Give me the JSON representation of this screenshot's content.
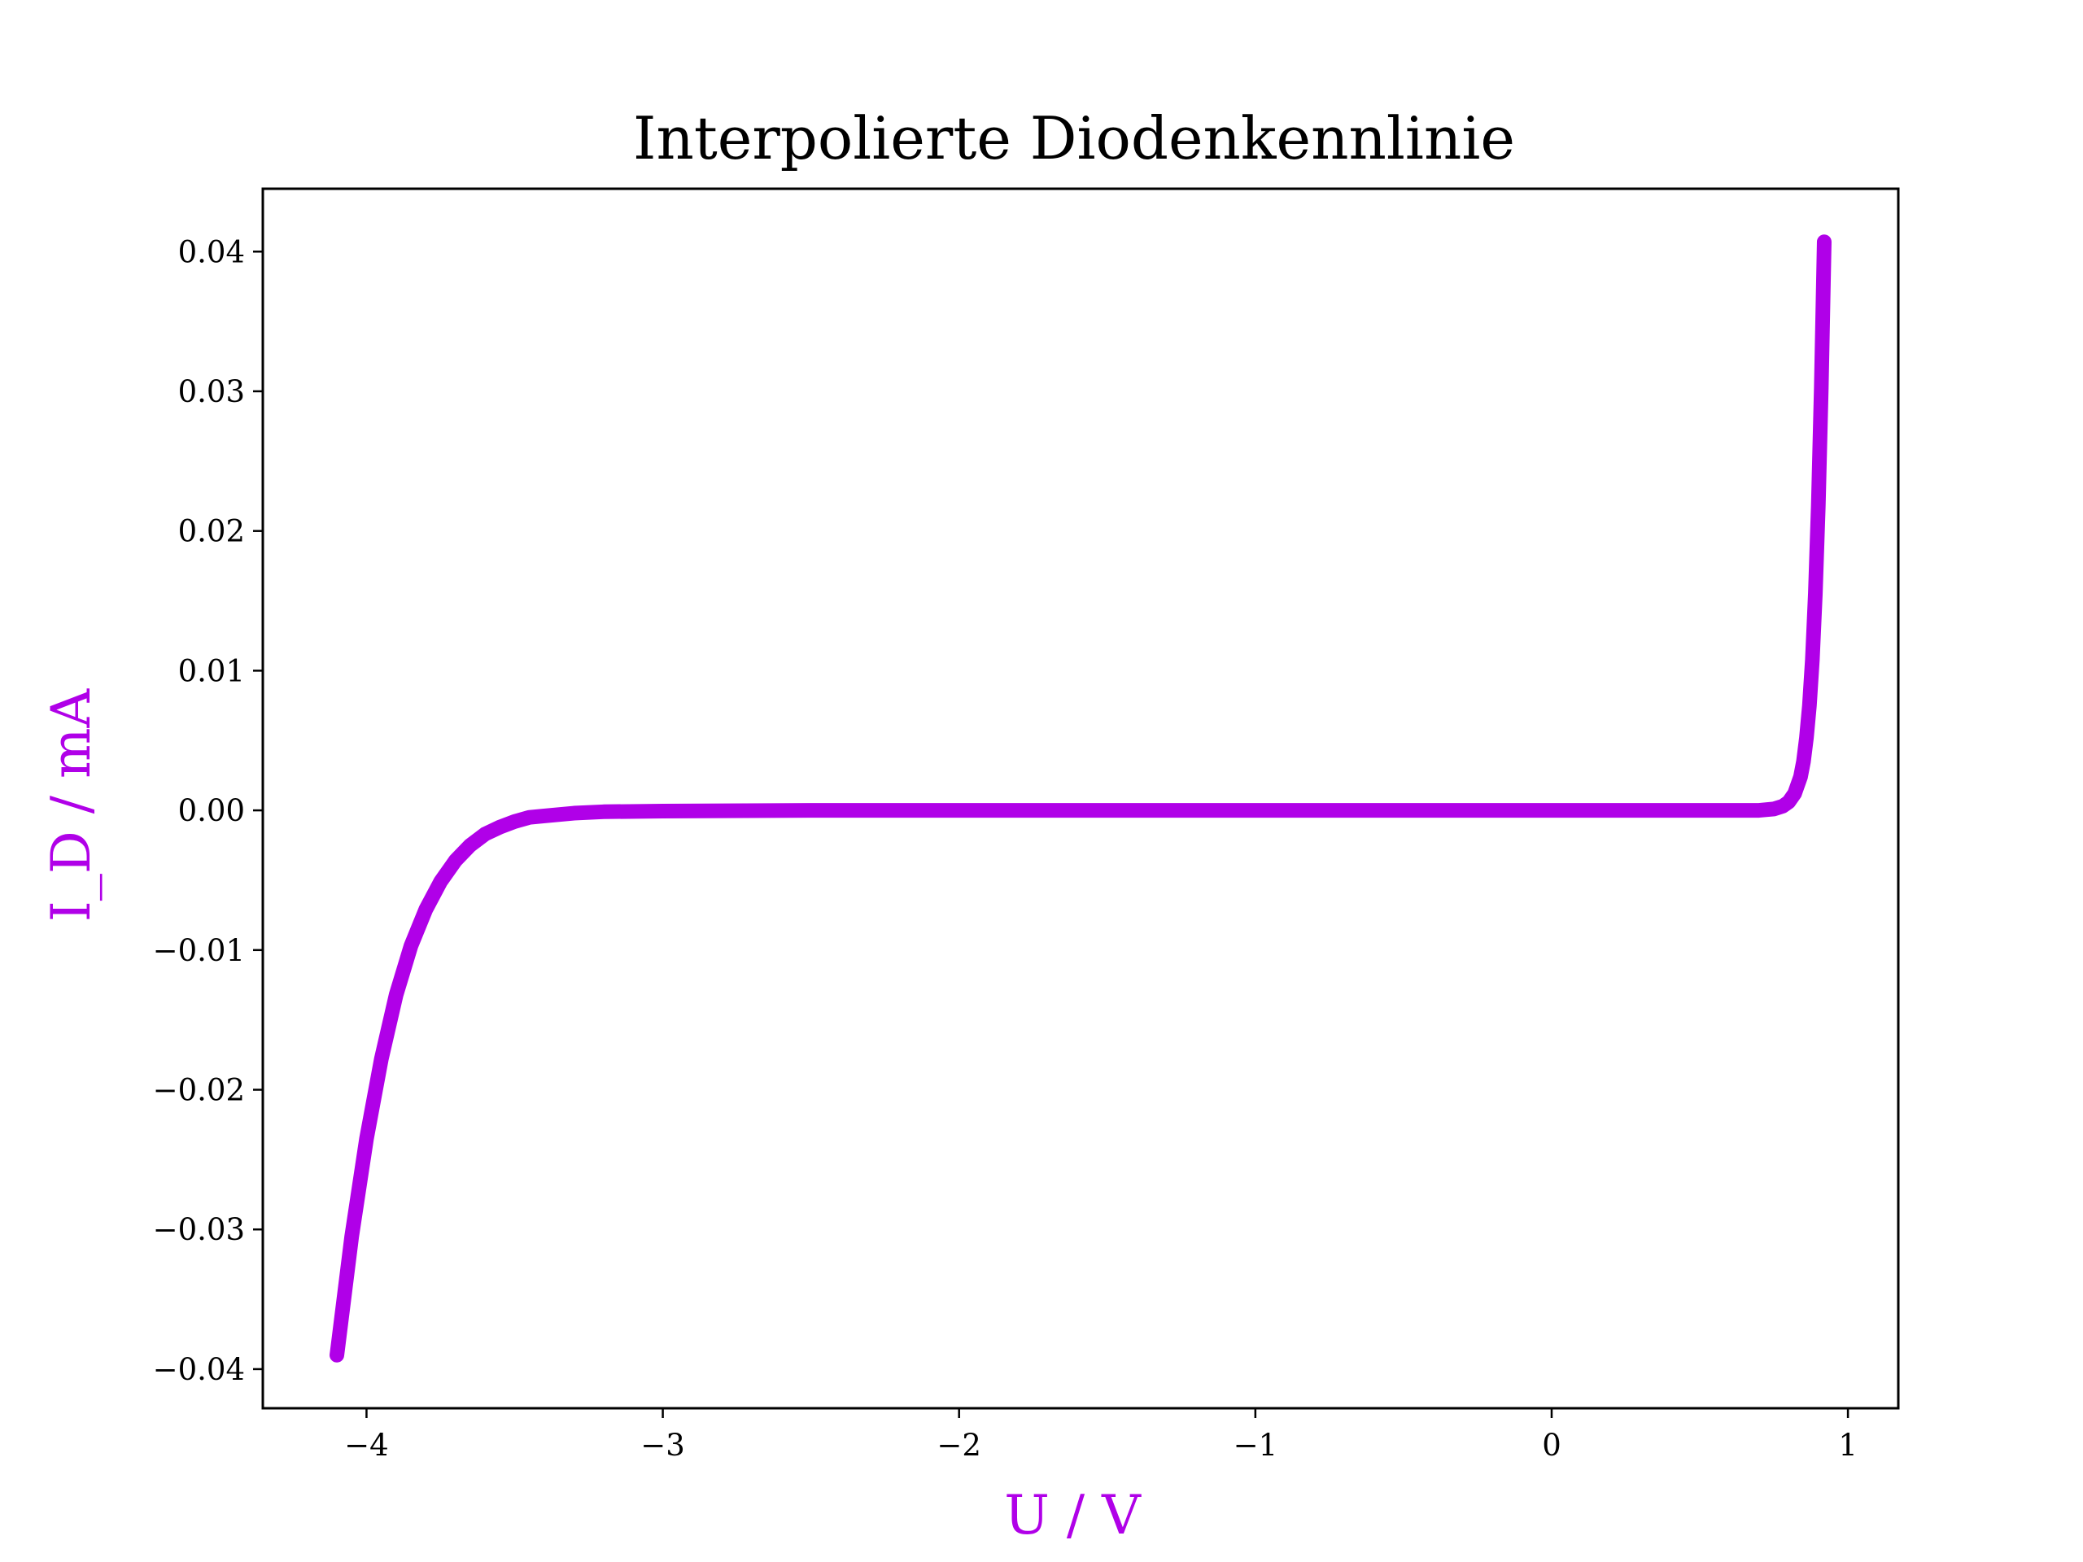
{
  "chart_data": {
    "type": "line",
    "title": "Interpolierte Diodenkennlinie",
    "xlabel": "U / V",
    "ylabel": "I_D / mA",
    "xlim": [
      -4.35,
      1.17
    ],
    "ylim": [
      -0.0428,
      0.0445
    ],
    "xticks": [
      -4,
      -3,
      -2,
      -1,
      0,
      1
    ],
    "xtick_labels": [
      "−4",
      "−3",
      "−2",
      "−1",
      "0",
      "1"
    ],
    "yticks": [
      -0.04,
      -0.03,
      -0.02,
      -0.01,
      0.0,
      0.01,
      0.02,
      0.03,
      0.04
    ],
    "ytick_labels": [
      "−0.04",
      "−0.03",
      "−0.02",
      "−0.01",
      "0.00",
      "0.01",
      "0.02",
      "0.03",
      "0.04"
    ],
    "grid": false,
    "series": [
      {
        "color": "#b000e8",
        "x": [
          -4.1,
          -4.05,
          -4.0,
          -3.95,
          -3.9,
          -3.85,
          -3.8,
          -3.75,
          -3.7,
          -3.65,
          -3.6,
          -3.55,
          -3.5,
          -3.45,
          -3.4,
          -3.3,
          -3.2,
          -3.0,
          -2.5,
          -2.0,
          -1.5,
          -1.0,
          -0.5,
          0.0,
          0.5,
          0.7,
          0.75,
          0.78,
          0.8,
          0.82,
          0.84,
          0.85,
          0.86,
          0.87,
          0.88,
          0.89,
          0.9,
          0.91,
          0.92
        ],
        "y": [
          -0.039,
          -0.0305,
          -0.0235,
          -0.0178,
          -0.0132,
          -0.0097,
          -0.0071,
          -0.0051,
          -0.0036,
          -0.0025,
          -0.0017,
          -0.0012,
          -0.0008,
          -0.0005,
          -0.0004,
          -0.0002,
          -0.0001,
          -5e-05,
          0.0,
          0.0,
          0.0,
          0.0,
          0.0,
          0.0,
          0.0,
          0.0,
          0.0001,
          0.0003,
          0.0006,
          0.0012,
          0.0024,
          0.0035,
          0.0052,
          0.0075,
          0.0108,
          0.0155,
          0.0218,
          0.0302,
          0.0407
        ]
      }
    ]
  },
  "colors": {
    "series": "#b000e8",
    "axis_label": "#b000e8",
    "axes": "#000000"
  }
}
